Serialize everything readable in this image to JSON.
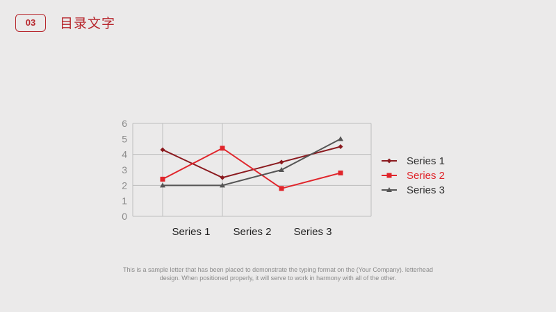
{
  "header": {
    "number": "03",
    "title": "目录文字"
  },
  "colors": {
    "accent": "#b7272d",
    "series1": "#8b1a1f",
    "series2": "#e0252b",
    "series3": "#555555"
  },
  "chart_data": {
    "type": "line",
    "categories": [
      "Series 1",
      "Series 2",
      "Series 3"
    ],
    "x": [
      1,
      2,
      3,
      4
    ],
    "ylim": [
      0,
      6
    ],
    "yticks": [
      "0",
      "1",
      "2",
      "3",
      "4",
      "5",
      "6"
    ],
    "grid": true,
    "legend_position": "right",
    "series": [
      {
        "name": "Series 1",
        "values": [
          4.3,
          2.5,
          3.5,
          4.5
        ],
        "marker": "diamond"
      },
      {
        "name": "Series 2",
        "values": [
          2.4,
          4.4,
          1.8,
          2.8
        ],
        "marker": "square"
      },
      {
        "name": "Series 3",
        "values": [
          2.0,
          2.0,
          3.0,
          5.0
        ],
        "marker": "triangle"
      }
    ]
  },
  "caption": {
    "line1": "This is a sample letter that has been placed to demonstrate the typing format on the (Your Company). letterhead",
    "line2": "design. When positioned properly, it will serve to work in harmony with all of the other."
  }
}
